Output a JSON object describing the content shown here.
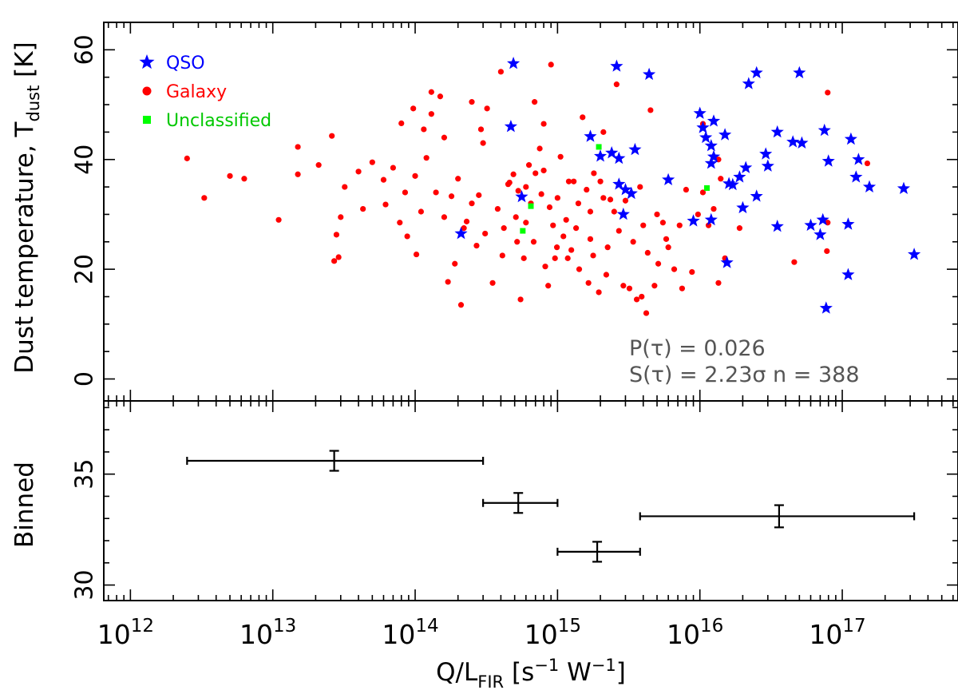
{
  "chart_data": [
    {
      "type": "scatter",
      "panel": "top",
      "xscale": "log",
      "xlim": [
        650000000000.0,
        6.5e+17
      ],
      "ylim": [
        -4,
        65
      ],
      "ylabel_main": "Dust temperature, T",
      "ylabel_sub": "dust",
      "ylabel_unit": " [K]",
      "yticks": [
        0,
        20,
        40,
        60
      ],
      "yticklabels": [
        "0",
        "20",
        "40",
        "60"
      ],
      "legend": [
        {
          "name": "QSO",
          "marker": "star",
          "color": "#0000ff"
        },
        {
          "name": "Galaxy",
          "marker": "circle",
          "color": "#ff0000"
        },
        {
          "name": "Unclassified",
          "marker": "square",
          "color": "#00ff00"
        }
      ],
      "legend_position": "top-left",
      "stats": {
        "p_line": "P(τ) = 0.026",
        "s_line": "S(τ) = 2.23σ n = 388"
      },
      "series": [
        {
          "name": "QSO",
          "marker": "star",
          "color": "#0000ff",
          "points": [
            [
              490000000000000.0,
              57.5
            ],
            [
              2600000000000000.0,
              57.0
            ],
            [
              4400000000000000.0,
              55.5
            ],
            [
              2.2e+16,
              53.8
            ],
            [
              2.5e+16,
              55.8
            ],
            [
              5e+16,
              55.8
            ],
            [
              470000000000000.0,
              46.0
            ],
            [
              1e+16,
              48.4
            ],
            [
              1.05e+16,
              45.8
            ],
            [
              1.25e+16,
              47.0
            ],
            [
              1.5e+16,
              44.5
            ],
            [
              7.5e+16,
              45.3
            ],
            [
              1.15e+17,
              43.7
            ],
            [
              3.5e+16,
              45.0
            ],
            [
              4.5e+16,
              43.2
            ],
            [
              5.2e+16,
              43.0
            ],
            [
              1.1e+16,
              44.0
            ],
            [
              1.3e+17,
              40.0
            ],
            [
              1700000000000000.0,
              44.2
            ],
            [
              2400000000000000.0,
              41.2
            ],
            [
              3500000000000000.0,
              41.8
            ],
            [
              2000000000000000.0,
              40.6
            ],
            [
              2700000000000000.0,
              40.2
            ],
            [
              1.2e+16,
              42.5
            ],
            [
              1.25e+16,
              40.5
            ],
            [
              2.9e+16,
              41.0
            ],
            [
              8e+16,
              39.7
            ],
            [
              1.2e+16,
              39.3
            ],
            [
              3e+16,
              38.8
            ],
            [
              2.1e+16,
              38.5
            ],
            [
              1.9e+16,
              36.8
            ],
            [
              1.6e+16,
              35.6
            ],
            [
              1.7e+16,
              35.4
            ],
            [
              1.25e+17,
              36.8
            ],
            [
              1.55e+17,
              35.0
            ],
            [
              2.7e+17,
              34.7
            ],
            [
              6000000000000000.0,
              36.3
            ],
            [
              2700000000000000.0,
              35.5
            ],
            [
              3000000000000000.0,
              34.5
            ],
            [
              3300000000000000.0,
              33.8
            ],
            [
              2.5e+16,
              33.3
            ],
            [
              560000000000000.0,
              33.2
            ],
            [
              2e+16,
              31.2
            ],
            [
              1.2e+16,
              29.0
            ],
            [
              9000000000000000.0,
              28.8
            ],
            [
              7.3e+16,
              29.0
            ],
            [
              6e+16,
              28.0
            ],
            [
              1.1e+17,
              28.2
            ],
            [
              3.5e+16,
              27.8
            ],
            [
              7e+16,
              26.3
            ],
            [
              210000000000000.0,
              26.5
            ],
            [
              2900000000000000.0,
              30.0
            ],
            [
              1.55e+16,
              21.2
            ],
            [
              3.2e+17,
              22.7
            ],
            [
              1.1e+17,
              19.0
            ],
            [
              7.7e+16,
              12.9
            ]
          ]
        },
        {
          "name": "Galaxy",
          "marker": "circle",
          "color": "#ff0000",
          "points": [
            [
              2500000000000.0,
              40.2
            ],
            [
              3300000000000.0,
              33.0
            ],
            [
              5000000000000.0,
              37.0
            ],
            [
              6300000000000.0,
              36.5
            ],
            [
              11000000000000.0,
              29.0
            ],
            [
              15000000000000.0,
              42.3
            ],
            [
              15000000000000.0,
              37.3
            ],
            [
              21000000000000.0,
              39.0
            ],
            [
              26000000000000.0,
              44.3
            ],
            [
              27000000000000.0,
              21.5
            ],
            [
              28000000000000.0,
              26.3
            ],
            [
              29000000000000.0,
              22.2
            ],
            [
              30000000000000.0,
              29.5
            ],
            [
              32000000000000.0,
              35.0
            ],
            [
              40000000000000.0,
              37.8
            ],
            [
              43000000000000.0,
              31.0
            ],
            [
              50000000000000.0,
              39.5
            ],
            [
              60000000000000.0,
              36.3
            ],
            [
              70000000000000.0,
              38.5
            ],
            [
              80000000000000.0,
              46.6
            ],
            [
              88000000000000.0,
              26.0
            ],
            [
              97000000000000.0,
              49.3
            ],
            [
              102000000000000.0,
              22.7
            ],
            [
              115000000000000.0,
              45.5
            ],
            [
              130000000000000.0,
              48.3
            ],
            [
              130000000000000.0,
              52.3
            ],
            [
              150000000000000.0,
              51.5
            ],
            [
              160000000000000.0,
              44.0
            ],
            [
              170000000000000.0,
              17.7
            ],
            [
              190000000000000.0,
              21.0
            ],
            [
              210000000000000.0,
              13.5
            ],
            [
              230000000000000.0,
              28.7
            ],
            [
              250000000000000.0,
              50.5
            ],
            [
              270000000000000.0,
              24.3
            ],
            [
              290000000000000.0,
              45.5
            ],
            [
              300000000000000.0,
              43.0
            ],
            [
              320000000000000.0,
              49.3
            ],
            [
              400000000000000.0,
              56.0
            ],
            [
              420000000000000.0,
              27.5
            ],
            [
              450000000000000.0,
              35.5
            ],
            [
              490000000000000.0,
              37.3
            ],
            [
              510000000000000.0,
              29.5
            ],
            [
              550000000000000.0,
              14.5
            ],
            [
              600000000000000.0,
              28.5
            ],
            [
              650000000000000.0,
              32.0
            ],
            [
              690000000000000.0,
              50.5
            ],
            [
              750000000000000.0,
              42.0
            ],
            [
              800000000000000.0,
              46.5
            ],
            [
              860000000000000.0,
              17.0
            ],
            [
              900000000000000.0,
              57.3
            ],
            [
              960000000000000.0,
              22.0
            ],
            [
              1050000000000000.0,
              40.5
            ],
            [
              1150000000000000.0,
              29.0
            ],
            [
              1300000000000000.0,
              36.0
            ],
            [
              1500000000000000.0,
              47.7
            ],
            [
              1650000000000000.0,
              17.5
            ],
            [
              1800000000000000.0,
              37.5
            ],
            [
              1950000000000000.0,
              15.8
            ],
            [
              2100000000000000.0,
              45.0
            ],
            [
              2350000000000000.0,
              32.7
            ],
            [
              2600000000000000.0,
              53.7
            ],
            [
              2900000000000000.0,
              17.0
            ],
            [
              3200000000000000.0,
              16.5
            ],
            [
              3600000000000000.0,
              14.5
            ],
            [
              3900000000000000.0,
              15.0
            ],
            [
              4200000000000000.0,
              12.0
            ],
            [
              4500000000000000.0,
              49.0
            ],
            [
              4800000000000000.0,
              17.0
            ],
            [
              5100000000000000.0,
              21.0
            ],
            [
              5500000000000000.0,
              28.5
            ],
            [
              6000000000000000.0,
              24.0
            ],
            [
              6600000000000000.0,
              20.0
            ],
            [
              7200000000000000.0,
              28.0
            ],
            [
              8000000000000000.0,
              34.5
            ],
            [
              8800000000000000.0,
              19.5
            ],
            [
              9700000000000000.0,
              30.0
            ],
            [
              1.05e+16,
              34.0
            ],
            [
              1.15e+16,
              28.0
            ],
            [
              1.25e+16,
              31.0
            ],
            [
              1.35e+16,
              40.0
            ],
            [
              1.4e+16,
              36.5
            ],
            [
              3800000000000000.0,
              35.0
            ],
            [
              2200000000000000.0,
              19.0
            ],
            [
              1700000000000000.0,
              25.5
            ],
            [
              1250000000000000.0,
              23.5
            ],
            [
              880000000000000.0,
              31.3
            ],
            [
              700000000000000.0,
              37.5
            ],
            [
              580000000000000.0,
              22.0
            ],
            [
              350000000000000.0,
              17.5
            ],
            [
              250000000000000.0,
              32.0
            ],
            [
              180000000000000.0,
              33.3
            ],
            [
              120000000000000.0,
              40.3
            ],
            [
              85000000000000.0,
              34.0
            ],
            [
              62000000000000.0,
              31.8
            ],
            [
              7500000000000000.0,
              16.5
            ],
            [
              1.35e+16,
              17.5
            ],
            [
              1.5e+16,
              22.0
            ],
            [
              1.9e+16,
              27.5
            ],
            [
              4.6e+16,
              21.3
            ],
            [
              7.8e+16,
              23.3
            ],
            [
              7.9e+16,
              28.5
            ],
            [
              7.9e+16,
              52.2
            ],
            [
              1.05e+16,
              46.5
            ],
            [
              1.5e+17,
              39.3
            ],
            [
              600000000000000.0,
              35.0
            ],
            [
              800000000000000.0,
              38.0
            ],
            [
              1000000000000000.0,
              33.0
            ],
            [
              1200000000000000.0,
              36.0
            ],
            [
              1400000000000000.0,
              32.0
            ],
            [
              1600000000000000.0,
              34.5
            ],
            [
              2000000000000000.0,
              36.0
            ],
            [
              2500000000000000.0,
              30.5
            ],
            [
              3000000000000000.0,
              32.5
            ],
            [
              4000000000000000.0,
              28.0
            ],
            [
              5000000000000000.0,
              30.0
            ],
            [
              100000000000000.0,
              37.0
            ],
            [
              140000000000000.0,
              34.0
            ],
            [
              200000000000000.0,
              36.5
            ],
            [
              280000000000000.0,
              33.5
            ],
            [
              380000000000000.0,
              31.0
            ],
            [
              460000000000000.0,
              35.8
            ],
            [
              530000000000000.0,
              34.3
            ],
            [
              630000000000000.0,
              39.0
            ],
            [
              770000000000000.0,
              33.7
            ],
            [
              930000000000000.0,
              28.0
            ],
            [
              1100000000000000.0,
              26.0
            ],
            [
              1350000000000000.0,
              27.5
            ],
            [
              1700000000000000.0,
              30.5
            ],
            [
              2100000000000000.0,
              33.0
            ],
            [
              2700000000000000.0,
              27.0
            ],
            [
              3400000000000000.0,
              25.0
            ],
            [
              4300000000000000.0,
              23.0
            ],
            [
              5800000000000000.0,
              25.5
            ],
            [
              680000000000000.0,
              25.0
            ],
            [
              820000000000000.0,
              20.5
            ],
            [
              990000000000000.0,
              24.0
            ],
            [
              1180000000000000.0,
              22.0
            ],
            [
              1420000000000000.0,
              20.0
            ],
            [
              1780000000000000.0,
              22.5
            ],
            [
              2250000000000000.0,
              24.0
            ],
            [
              310000000000000.0,
              26.5
            ],
            [
              410000000000000.0,
              22.5
            ],
            [
              520000000000000.0,
              25.0
            ],
            [
              160000000000000.0,
              29.5
            ],
            [
              220000000000000.0,
              27.5
            ],
            [
              110000000000000.0,
              30.5
            ],
            [
              78000000000000.0,
              28.5
            ]
          ]
        },
        {
          "name": "Unclassified",
          "marker": "square",
          "color": "#00ff00",
          "points": [
            [
              1950000000000000.0,
              42.3
            ],
            [
              650000000000000.0,
              31.5
            ],
            [
              570000000000000.0,
              27.0
            ],
            [
              1.12e+16,
              34.8
            ]
          ]
        }
      ]
    },
    {
      "type": "errorbar",
      "panel": "bottom",
      "xscale": "log",
      "ylim": [
        29.3,
        38.3
      ],
      "ylabel": "Binned",
      "yticks": [
        30,
        35
      ],
      "yticklabels": [
        "30",
        "35"
      ],
      "xticks": [
        1000000000000.0,
        10000000000000.0,
        100000000000000.0,
        1000000000000000.0,
        1e+16,
        1e+17
      ],
      "xticklabels": [
        {
          "base": "10",
          "exp": "12"
        },
        {
          "base": "10",
          "exp": "13"
        },
        {
          "base": "10",
          "exp": "14"
        },
        {
          "base": "10",
          "exp": "15"
        },
        {
          "base": "10",
          "exp": "16"
        },
        {
          "base": "10",
          "exp": "17"
        }
      ],
      "xlabel_parts": {
        "q": "Q/L",
        "sub": "FIR",
        "units_open": " [s",
        "exp1": "−1",
        "w": " W",
        "exp2": "−1",
        "units_close": "]"
      },
      "bins": [
        {
          "x": 27000000000000.0,
          "xlo": 2500000000000.0,
          "xhi": 300000000000000.0,
          "y": 35.6,
          "yerr": 0.45
        },
        {
          "x": 530000000000000.0,
          "xlo": 300000000000000.0,
          "xhi": 1000000000000000.0,
          "y": 33.7,
          "yerr": 0.45
        },
        {
          "x": 1900000000000000.0,
          "xlo": 1000000000000000.0,
          "xhi": 3800000000000000.0,
          "y": 31.5,
          "yerr": 0.45
        },
        {
          "x": 3.6e+16,
          "xlo": 3800000000000000.0,
          "xhi": 3.2e+17,
          "y": 33.1,
          "yerr": 0.5
        }
      ]
    }
  ]
}
